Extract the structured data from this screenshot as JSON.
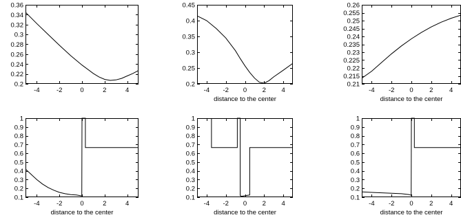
{
  "chart_data": [
    {
      "type": "line",
      "xlabel": "",
      "xlim": [
        -5,
        5
      ],
      "ylim": [
        0.2,
        0.36
      ],
      "xticks": [
        -4,
        -2,
        0,
        2,
        4
      ],
      "xtick_labels": [
        "-4",
        "-2",
        "0",
        "2",
        "4"
      ],
      "yticks": [
        0.2,
        0.22,
        0.24,
        0.26,
        0.28,
        0.3,
        0.32,
        0.34,
        0.36
      ],
      "ytick_labels": [
        "0.2",
        "0.22",
        "0.24",
        "0.26",
        "0.28",
        "0.3",
        "0.32",
        "0.34",
        "0.36"
      ],
      "series": [
        {
          "x": [
            -5,
            -4,
            -3,
            -2,
            -1,
            0,
            1,
            1.5,
            2,
            2.5,
            3,
            3.5,
            4,
            4.5,
            5
          ],
          "y": [
            0.345,
            0.322,
            0.3,
            0.278,
            0.257,
            0.238,
            0.221,
            0.214,
            0.209,
            0.207,
            0.208,
            0.211,
            0.216,
            0.221,
            0.227
          ]
        }
      ]
    },
    {
      "type": "line",
      "xlabel": "distance to the center",
      "xlim": [
        -5,
        5
      ],
      "ylim": [
        0.2,
        0.45
      ],
      "xticks": [
        -4,
        -2,
        0,
        2,
        4
      ],
      "xtick_labels": [
        "-4",
        "-2",
        "0",
        "2",
        "4"
      ],
      "yticks": [
        0.2,
        0.25,
        0.3,
        0.35,
        0.4,
        0.45
      ],
      "ytick_labels": [
        "0.2",
        "0.25",
        "0.3",
        "0.35",
        "0.4",
        "0.45"
      ],
      "series": [
        {
          "x": [
            -5,
            -4,
            -3,
            -2,
            -1,
            -0.5,
            0,
            0.5,
            1,
            1.5,
            2,
            2.5,
            3,
            4,
            5
          ],
          "y": [
            0.415,
            0.4,
            0.375,
            0.345,
            0.305,
            0.28,
            0.257,
            0.236,
            0.218,
            0.205,
            0.202,
            0.21,
            0.222,
            0.243,
            0.265
          ]
        }
      ]
    },
    {
      "type": "line",
      "xlabel": "distance to the center",
      "xlim": [
        -5,
        5
      ],
      "ylim": [
        0.21,
        0.26
      ],
      "xticks": [
        -4,
        -2,
        0,
        2,
        4
      ],
      "xtick_labels": [
        "-4",
        "-2",
        "0",
        "2",
        "4"
      ],
      "yticks": [
        0.21,
        0.215,
        0.22,
        0.225,
        0.23,
        0.235,
        0.24,
        0.245,
        0.25,
        0.255,
        0.26
      ],
      "ytick_labels": [
        "0.21",
        "0.215",
        "0.22",
        "0.225",
        "0.23",
        "0.235",
        "0.24",
        "0.245",
        "0.25",
        "0.255",
        "0.26"
      ],
      "series": [
        {
          "x": [
            -5,
            -4,
            -3,
            -2,
            -1,
            0,
            1,
            2,
            3,
            4,
            5
          ],
          "y": [
            0.2135,
            0.218,
            0.2235,
            0.229,
            0.234,
            0.2385,
            0.2425,
            0.246,
            0.249,
            0.2515,
            0.2535
          ]
        }
      ]
    },
    {
      "type": "line",
      "xlabel": "distance to the center",
      "xlim": [
        -5,
        5
      ],
      "ylim": [
        0.1,
        1
      ],
      "xticks": [
        -4,
        -2,
        0,
        2,
        4
      ],
      "xtick_labels": [
        "-4",
        "-2",
        "0",
        "2",
        "4"
      ],
      "yticks": [
        0.1,
        0.2,
        0.3,
        0.4,
        0.5,
        0.6,
        0.7,
        0.8,
        0.9,
        1
      ],
      "ytick_labels": [
        "0.1",
        "0.2",
        "0.3",
        "0.4",
        "0.5",
        "0.6",
        "0.7",
        "0.8",
        "0.9",
        "1"
      ],
      "series": [
        {
          "x": [
            -5,
            -4.5,
            -4,
            -3.5,
            -3,
            -2.5,
            -2,
            -1.5,
            -1,
            -0.5,
            -0.02,
            0.0,
            0.02,
            0.3,
            0.3,
            5
          ],
          "y": [
            0.42,
            0.36,
            0.3,
            0.25,
            0.21,
            0.18,
            0.155,
            0.14,
            0.13,
            0.125,
            0.115,
            1.0,
            1.0,
            1.0,
            0.665,
            0.665
          ]
        }
      ]
    },
    {
      "type": "line",
      "xlabel": "distance to the center",
      "xlim": [
        -5,
        5
      ],
      "ylim": [
        0.1,
        1
      ],
      "xticks": [
        -4,
        -2,
        0,
        2,
        4
      ],
      "xtick_labels": [
        "-4",
        "-2",
        "0",
        "2",
        "4"
      ],
      "yticks": [
        0.1,
        0.2,
        0.3,
        0.4,
        0.5,
        0.6,
        0.7,
        0.8,
        0.9,
        1
      ],
      "ytick_labels": [
        "0.1",
        "0.2",
        "0.3",
        "0.4",
        "0.5",
        "0.6",
        "0.7",
        "0.8",
        "0.9",
        "1"
      ],
      "series": [
        {
          "x": [
            -3.5,
            -3.5,
            -0.8,
            -0.8,
            -0.5,
            -0.5,
            -0.4,
            0.5,
            0.5,
            5
          ],
          "y": [
            1.0,
            0.665,
            0.665,
            1.0,
            1.0,
            0.12,
            0.11,
            0.125,
            0.665,
            0.665
          ]
        }
      ]
    },
    {
      "type": "line",
      "xlabel": "distance to the center",
      "xlim": [
        -5,
        5
      ],
      "ylim": [
        0.1,
        1
      ],
      "xticks": [
        -4,
        -2,
        0,
        2,
        4
      ],
      "xtick_labels": [
        "-4",
        "-2",
        "0",
        "2",
        "4"
      ],
      "yticks": [
        0.1,
        0.2,
        0.3,
        0.4,
        0.5,
        0.6,
        0.7,
        0.8,
        0.9,
        1
      ],
      "ytick_labels": [
        "0.1",
        "0.2",
        "0.3",
        "0.4",
        "0.5",
        "0.6",
        "0.7",
        "0.8",
        "0.9",
        "1"
      ],
      "series": [
        {
          "x": [
            -5,
            -4,
            -3,
            -2,
            -1,
            -0.2,
            -0.02,
            0.0,
            0.02,
            0.3,
            0.3,
            5
          ],
          "y": [
            0.16,
            0.155,
            0.15,
            0.145,
            0.14,
            0.13,
            0.12,
            1.0,
            1.0,
            1.0,
            0.665,
            0.665
          ]
        }
      ]
    }
  ]
}
